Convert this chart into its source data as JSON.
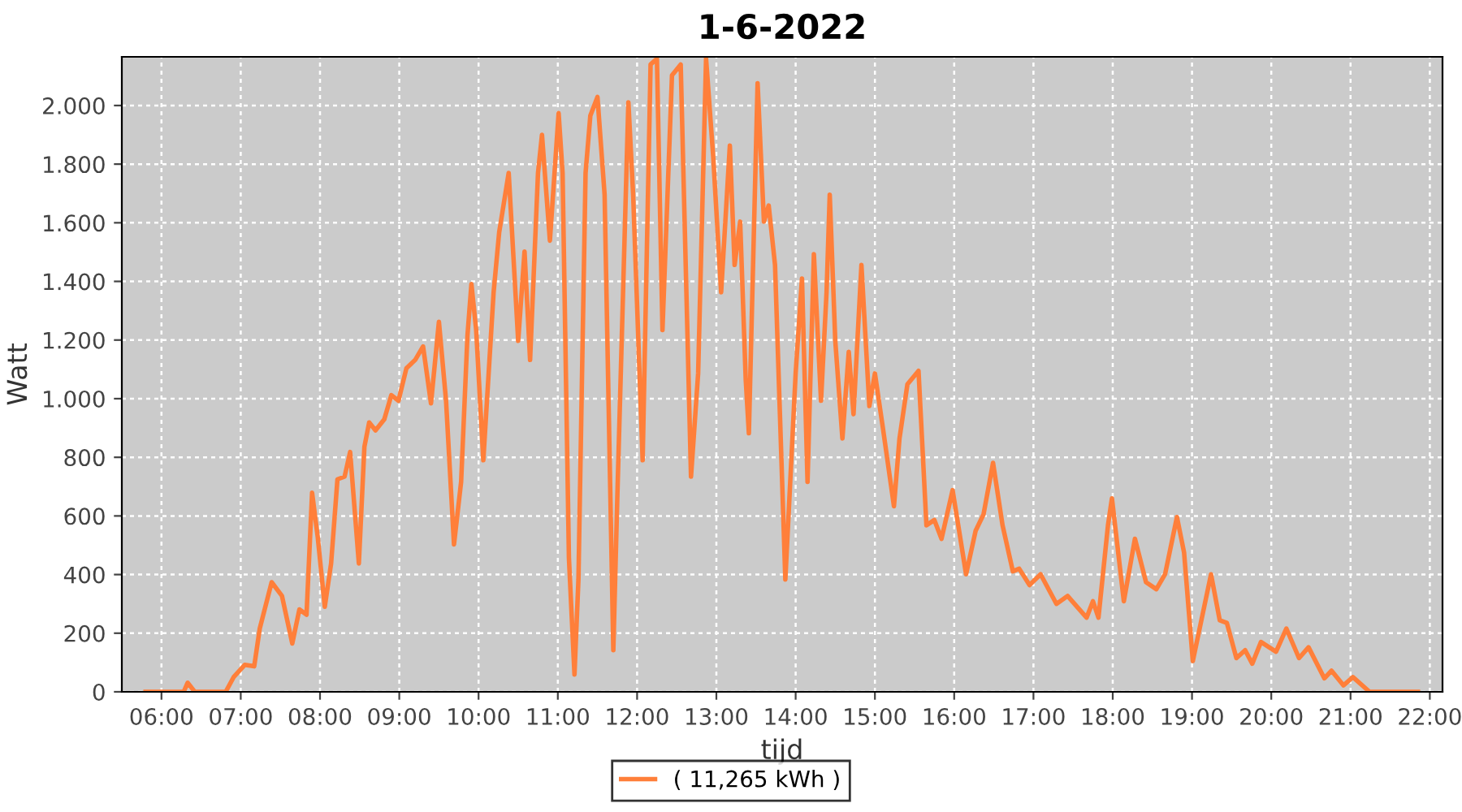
{
  "chart_data": {
    "type": "line",
    "title": "1-6-2022",
    "xlabel": "tijd",
    "ylabel": "Watt",
    "x": [
      5.8,
      6.28,
      6.33,
      6.42,
      6.81,
      6.91,
      7.05,
      7.17,
      7.24,
      7.39,
      7.52,
      7.65,
      7.74,
      7.83,
      7.9,
      7.97,
      8.06,
      8.14,
      8.22,
      8.31,
      8.38,
      8.49,
      8.56,
      8.62,
      8.7,
      8.81,
      8.9,
      8.99,
      9.09,
      9.2,
      9.3,
      9.4,
      9.5,
      9.59,
      9.69,
      9.78,
      9.86,
      9.91,
      9.97,
      10.06,
      10.19,
      10.26,
      10.38,
      10.5,
      10.58,
      10.65,
      10.75,
      10.8,
      10.9,
      11.01,
      11.06,
      11.14,
      11.21,
      11.26,
      11.35,
      11.41,
      11.5,
      11.59,
      11.7,
      11.75,
      11.89,
      11.95,
      12.07,
      12.17,
      12.25,
      12.32,
      12.44,
      12.55,
      12.68,
      12.77,
      12.87,
      12.96,
      13.06,
      13.17,
      13.23,
      13.3,
      13.37,
      13.41,
      13.52,
      13.6,
      13.66,
      13.74,
      13.87,
      14.0,
      14.08,
      14.15,
      14.23,
      14.32,
      14.39,
      14.43,
      14.5,
      14.59,
      14.67,
      14.73,
      14.83,
      14.93,
      15.0,
      15.1,
      15.24,
      15.31,
      15.41,
      15.55,
      15.65,
      15.75,
      15.84,
      15.98,
      16.15,
      16.27,
      16.37,
      16.49,
      16.61,
      16.74,
      16.82,
      16.95,
      17.09,
      17.29,
      17.43,
      17.67,
      17.75,
      17.82,
      17.94,
      17.99,
      18.14,
      18.28,
      18.42,
      18.55,
      18.66,
      18.81,
      18.9,
      19.01,
      19.24,
      19.35,
      19.44,
      19.56,
      19.67,
      19.76,
      19.87,
      20.06,
      20.19,
      20.35,
      20.47,
      20.67,
      20.76,
      20.91,
      21.03,
      21.24,
      21.85
    ],
    "series": [
      {
        "name": "( 11,265 kWh )",
        "color": "#ff7f3a",
        "values": [
          0,
          0,
          31,
          0,
          0,
          50,
          92,
          87,
          216,
          374,
          327,
          165,
          281,
          263,
          679,
          531,
          290,
          438,
          725,
          734,
          818,
          438,
          836,
          919,
          892,
          929,
          1012,
          993,
          1104,
          1132,
          1178,
          984,
          1262,
          993,
          503,
          716,
          1215,
          1391,
          1234,
          790,
          1363,
          1567,
          1770,
          1197,
          1502,
          1132,
          1770,
          1900,
          1539,
          1974,
          1770,
          457,
          59,
          383,
          1770,
          1965,
          2029,
          1696,
          142,
          660,
          2011,
          1696,
          790,
          2140,
          2160,
          1234,
          2103,
          2140,
          734,
          1086,
          2160,
          1826,
          1363,
          1863,
          1456,
          1604,
          1067,
          882,
          2076,
          1604,
          1659,
          1456,
          383,
          1086,
          1410,
          716,
          1493,
          993,
          1363,
          1696,
          1197,
          864,
          1160,
          947,
          1456,
          975,
          1086,
          901,
          633,
          864,
          1049,
          1095,
          568,
          586,
          522,
          688,
          401,
          549,
          605,
          781,
          568,
          411,
          420,
          364,
          401,
          300,
          327,
          253,
          309,
          253,
          568,
          660,
          309,
          522,
          374,
          350,
          401,
          596,
          475,
          105,
          401,
          244,
          235,
          115,
          142,
          96,
          170,
          137,
          216,
          115,
          152,
          46,
          72,
          22,
          50,
          0,
          0
        ]
      }
    ],
    "xlim": [
      5.5,
      22.16
    ],
    "xticks": [
      {
        "value": 6,
        "label": "06:00"
      },
      {
        "value": 7,
        "label": "07:00"
      },
      {
        "value": 8,
        "label": "08:00"
      },
      {
        "value": 9,
        "label": "09:00"
      },
      {
        "value": 10,
        "label": "10:00"
      },
      {
        "value": 11,
        "label": "11:00"
      },
      {
        "value": 12,
        "label": "12:00"
      },
      {
        "value": 13,
        "label": "13:00"
      },
      {
        "value": 14,
        "label": "14:00"
      },
      {
        "value": 15,
        "label": "15:00"
      },
      {
        "value": 16,
        "label": "16:00"
      },
      {
        "value": 17,
        "label": "17:00"
      },
      {
        "value": 18,
        "label": "18:00"
      },
      {
        "value": 19,
        "label": "19:00"
      },
      {
        "value": 20,
        "label": "20:00"
      },
      {
        "value": 21,
        "label": "21:00"
      },
      {
        "value": 22,
        "label": "22:00"
      }
    ],
    "ylim": [
      0,
      2166
    ],
    "yticks": [
      0,
      200,
      400,
      600,
      800,
      {
        "value": 1000,
        "label": "1.000"
      },
      {
        "value": 1200,
        "label": "1.200"
      },
      {
        "value": 1400,
        "label": "1.400"
      },
      {
        "value": 1600,
        "label": "1.600"
      },
      {
        "value": 1800,
        "label": "1.800"
      },
      {
        "value": 2000,
        "label": "2.000"
      }
    ],
    "grid": true,
    "legend": "bottom",
    "marker": "none",
    "line_style": "solid"
  }
}
